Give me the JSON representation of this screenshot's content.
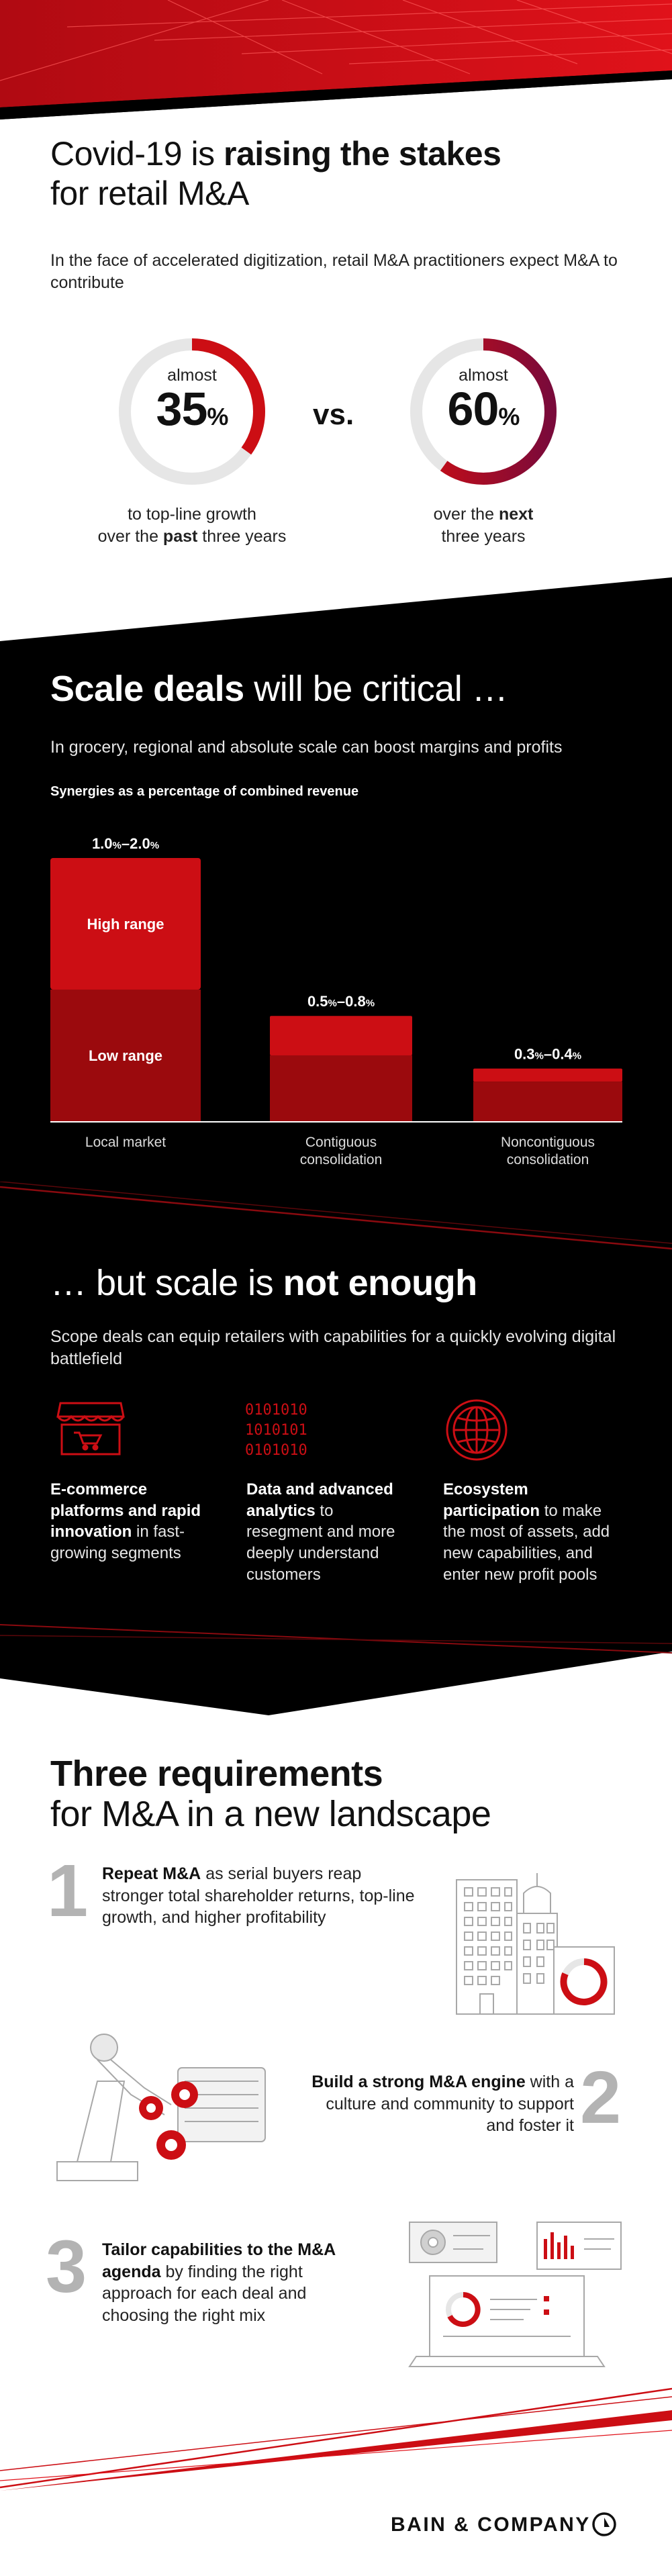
{
  "section1": {
    "title_plain": "Covid-19 is ",
    "title_bold": "raising the stakes",
    "title_line2": "for retail M&A",
    "intro": "In the face of accelerated digitization, retail M&A practitioners expect M&A to contribute",
    "vs": "vs.",
    "left": {
      "small": "almost",
      "value": "35",
      "unit": "%",
      "percent": 35,
      "caption_line1": "to top-line growth",
      "caption_pre": "over the ",
      "caption_bold": "past",
      "caption_post": " three years"
    },
    "right": {
      "small": "almost",
      "value": "60",
      "unit": "%",
      "percent": 60,
      "caption_pre": "over the ",
      "caption_bold": "next",
      "caption_line2": "three years"
    }
  },
  "section2": {
    "title_bold": "Scale deals",
    "title_plain": " will be critical …",
    "intro": "In grocery, regional and absolute scale can boost margins and profits",
    "chart_subtitle": "Synergies as a percentage of combined revenue",
    "high_label": "High range",
    "low_label": "Low range"
  },
  "chart_data": {
    "type": "bar",
    "title": "Synergies as a percentage of combined revenue",
    "categories": [
      "Local market",
      "Contiguous consolidation",
      "Noncontiguous consolidation"
    ],
    "category_lines": [
      [
        "Local market"
      ],
      [
        "Contiguous",
        "consolidation"
      ],
      [
        "Noncontiguous",
        "consolidation"
      ]
    ],
    "range_labels": [
      {
        "low": "1.0",
        "high": "2.0"
      },
      {
        "low": "0.5",
        "high": "0.8"
      },
      {
        "low": "0.3",
        "high": "0.4"
      }
    ],
    "series": [
      {
        "name": "Low range",
        "values": [
          1.0,
          0.5,
          0.3
        ]
      },
      {
        "name": "High range",
        "values": [
          2.0,
          0.8,
          0.4
        ]
      }
    ],
    "unit": "%",
    "colors": {
      "low": "#9b0a0d",
      "high": "#cc0e14"
    },
    "legend": "inside-first-bar"
  },
  "section3": {
    "title_plain": "… but scale is ",
    "title_bold": "not enough",
    "intro": "Scope deals can equip retailers with capabilities for a quickly evolving digital battlefield",
    "binary_lines": [
      "0101010",
      "1010101",
      "0101010"
    ],
    "items": [
      {
        "icon": "storefront-cart-icon",
        "bold": "E-commerce platforms and rapid innovation",
        "rest": "in fast-growing segments"
      },
      {
        "icon": "binary-data-icon",
        "bold": "Data and advanced analytics",
        "rest": "to resegment and more deeply understand customers"
      },
      {
        "icon": "globe-icon",
        "bold": "Ecosystem participation",
        "rest": "to make the most of assets, add new capabilities, and enter new profit pools"
      }
    ]
  },
  "section4": {
    "title_bold": "Three requirements",
    "title_line2": "for M&A in a new landscape",
    "reqs": [
      {
        "num": "1",
        "bold": "Repeat M&A",
        "rest": " as serial buyers reap stronger total shareholder returns, top-line growth, and higher profitability",
        "illustration": "buildings-icon"
      },
      {
        "num": "2",
        "bold": "Build a strong M&A engine",
        "rest": " with a culture and community to support and foster it",
        "illustration": "robot-arm-icon"
      },
      {
        "num": "3",
        "bold": "Tailor capabilities to the M&A agenda",
        "rest": " by finding the right approach for each deal and choosing the right mix",
        "illustration": "laptop-dashboard-icon"
      }
    ]
  },
  "footer": {
    "brand": "BAIN & COMPANY",
    "logo_icon": "bain-circle-logo-icon"
  },
  "colors": {
    "red": "#cc0e14",
    "dark_red": "#9b0a0d",
    "crimson_gradient_end": "#7a0a3a",
    "black": "#000000",
    "grey_ring": "#e6e6e6",
    "number_grey": "#b3b3b3"
  }
}
